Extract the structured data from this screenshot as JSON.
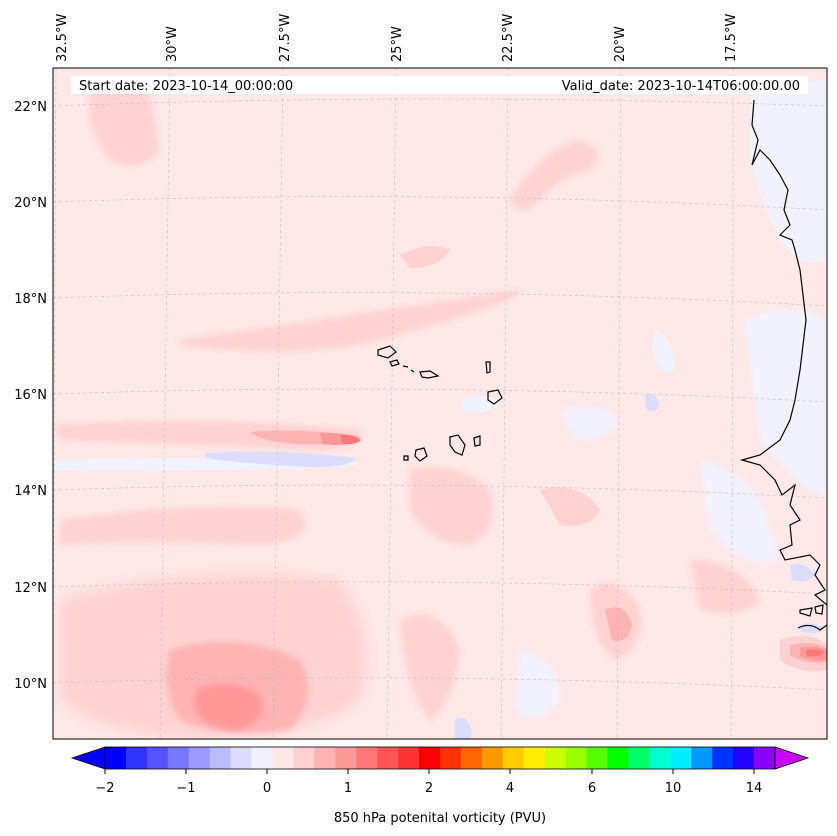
{
  "header": {
    "start_date": "Start date: 2023-10-14_00:00:00",
    "valid_date": "Valid_date: 2023-10-14T06:00:00.00"
  },
  "map": {
    "lon_labels": [
      "32.5°W",
      "30°W",
      "27.5°W",
      "25°W",
      "22.5°W",
      "20°W",
      "17.5°W"
    ],
    "lat_labels": [
      "22°N",
      "20°N",
      "18°N",
      "16°N",
      "14°N",
      "12°N",
      "10°N"
    ],
    "gridlines": true
  },
  "colorbar": {
    "label": "850 hPa potenital vorticity (PVU)",
    "tick_labels": [
      "−2",
      "−1",
      "0",
      "1",
      "2",
      "4",
      "6",
      "10",
      "14"
    ],
    "extend": "both",
    "colors": [
      "#0000ff",
      "#3333ff",
      "#5555ff",
      "#7777ff",
      "#9999ff",
      "#bbbbff",
      "#dcdcff",
      "#f2f2ff",
      "#ffe8e8",
      "#ffd0d0",
      "#ffb3b3",
      "#ff9999",
      "#ff7777",
      "#ff5555",
      "#ff3333",
      "#ff0000",
      "#ff3300",
      "#ff6600",
      "#ff9900",
      "#ffcc00",
      "#ffee00",
      "#ccff00",
      "#99ff00",
      "#55ff00",
      "#00ff00",
      "#00ff66",
      "#00ffcc",
      "#00eeff",
      "#0099ff",
      "#0033ff",
      "#2200ff",
      "#8800ff"
    ],
    "under_color": "#0000ff",
    "over_color": "#cc00ff"
  }
}
